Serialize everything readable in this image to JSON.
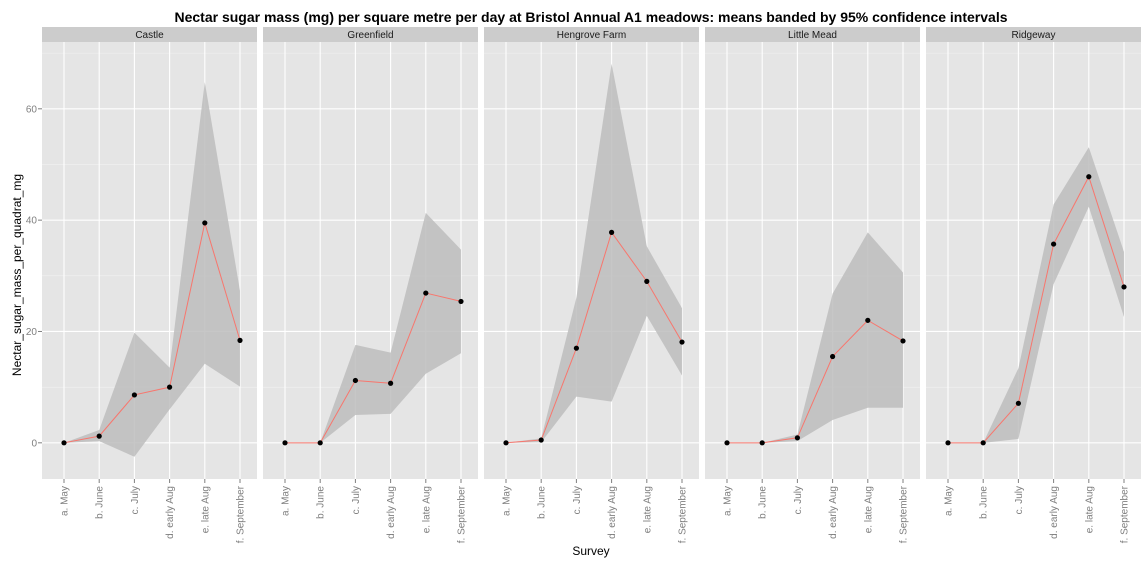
{
  "chart_data": {
    "type": "line",
    "title": "Nectar sugar mass (mg) per square metre per day at Bristol Annual A1 meadows:  means banded by 95% confidence intervals",
    "xlabel": "Survey",
    "ylabel": "Nectar_sugar_mass_per_quadrat_mg",
    "categories": [
      "a. May",
      "b. June",
      "c. July",
      "d. early Aug",
      "e. late Aug",
      "f. September"
    ],
    "ylim": [
      -6.5,
      72
    ],
    "yticks": [
      0,
      20,
      40,
      60
    ],
    "grid": true,
    "facets": [
      {
        "name": "Castle",
        "mean": [
          0,
          1.2,
          8.6,
          10.0,
          39.5,
          18.4
        ],
        "lower": [
          0,
          0.3,
          -2.5,
          6.0,
          14.2,
          10.1
        ],
        "upper": [
          0,
          2.3,
          19.8,
          13.5,
          64.8,
          27.3
        ]
      },
      {
        "name": "Greenfield",
        "mean": [
          0,
          0,
          11.2,
          10.7,
          26.9,
          25.4
        ],
        "lower": [
          0,
          0,
          5.0,
          5.2,
          12.4,
          16.1
        ],
        "upper": [
          0,
          0,
          17.6,
          16.2,
          41.3,
          34.7
        ]
      },
      {
        "name": "Hengrove Farm",
        "mean": [
          0,
          0.5,
          17.0,
          37.8,
          29.0,
          18.1
        ],
        "lower": [
          0,
          0.1,
          8.3,
          7.4,
          22.8,
          12.1
        ],
        "upper": [
          0,
          0.8,
          26.1,
          68.1,
          35.3,
          24.2
        ]
      },
      {
        "name": "Little Mead",
        "mean": [
          0,
          0,
          0.9,
          15.5,
          22.0,
          18.3
        ],
        "lower": [
          0,
          0,
          0.3,
          4.1,
          6.3,
          6.3
        ],
        "upper": [
          0,
          0,
          1.5,
          26.8,
          37.8,
          30.6
        ]
      },
      {
        "name": "Ridgeway",
        "mean": [
          0,
          0,
          7.1,
          35.7,
          47.8,
          28.0
        ],
        "lower": [
          0,
          0,
          0.7,
          28.5,
          42.4,
          22.6
        ],
        "upper": [
          0,
          0,
          13.4,
          42.8,
          53.1,
          34.3
        ]
      }
    ],
    "colors": {
      "panel_bg": "#E5E5E5",
      "strip_bg": "#CCCCCC",
      "grid_major": "#FFFFFF",
      "grid_minor": "#F2F2F2",
      "ribbon": "#BDBDBD",
      "line": "#F8766D",
      "point": "#000000"
    }
  }
}
